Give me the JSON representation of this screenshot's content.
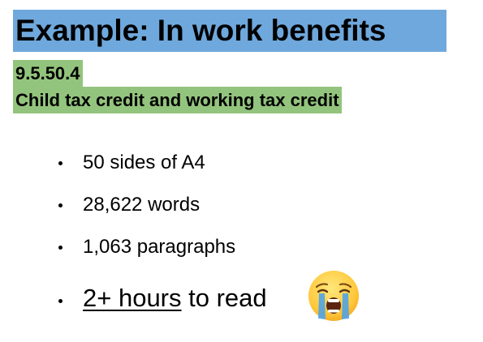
{
  "title": "Example: In work benefits",
  "reference": {
    "code": "9.5.50.4",
    "name": "Child tax credit and working tax credit"
  },
  "bullets": [
    {
      "text": "50 sides of A4"
    },
    {
      "text": "28,622 words"
    },
    {
      "text": "1,063 paragraphs"
    },
    {
      "emphasis": "2+ hours",
      "rest": " to read"
    }
  ],
  "icon": "crying-face-icon",
  "colors": {
    "title_bg": "#6fa8dc",
    "reference_bg": "#93c47d"
  }
}
